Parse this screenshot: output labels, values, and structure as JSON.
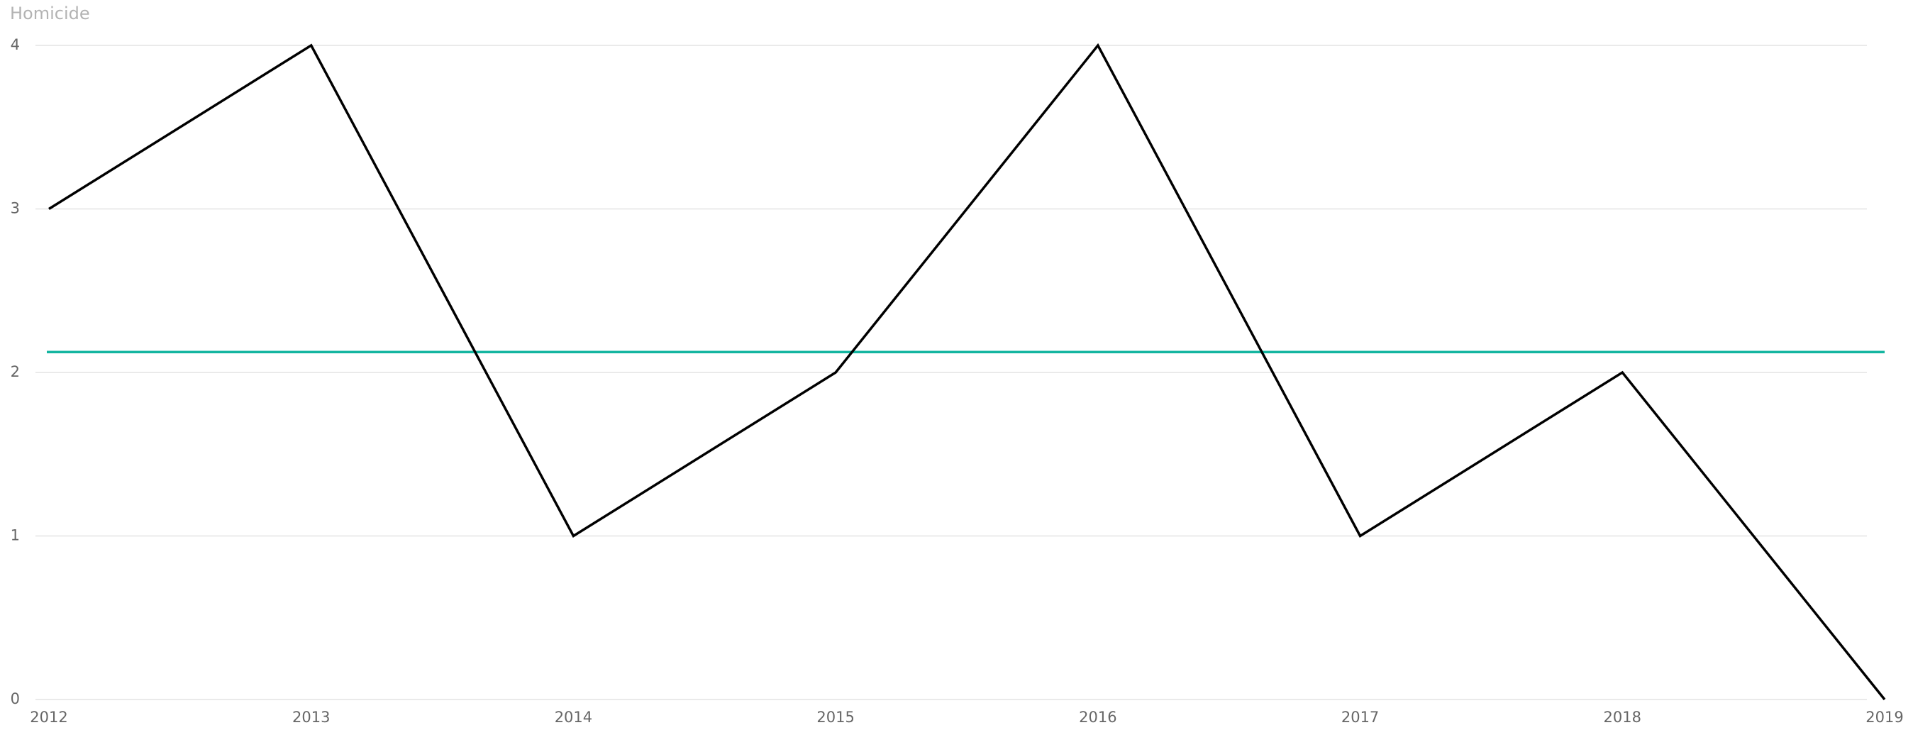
{
  "chart_data": {
    "type": "line",
    "title": "Homicide",
    "categories": [
      "2012",
      "2013",
      "2014",
      "2015",
      "2016",
      "2017",
      "2018",
      "2019"
    ],
    "series": [
      {
        "color": "#000000",
        "values": [
          3,
          4,
          1,
          2,
          4,
          1,
          2,
          0
        ]
      }
    ],
    "average_line": {
      "value": 2.125,
      "color": "#13b5a0"
    },
    "ylim": [
      0,
      4
    ],
    "yticks": [
      0,
      1,
      2,
      3,
      4
    ],
    "grid": true
  }
}
